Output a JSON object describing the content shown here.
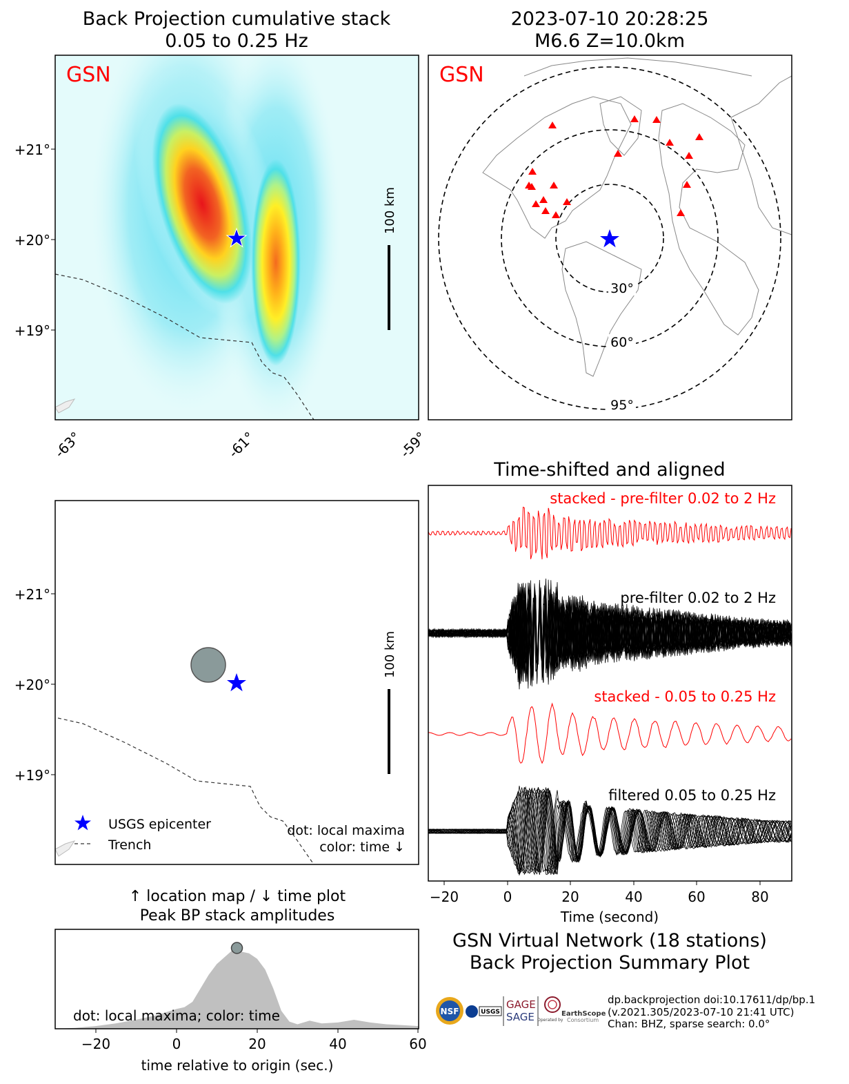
{
  "panels": {
    "bp_map": {
      "title": "Back Projection cumulative stack",
      "subtitle": "0.05 to 0.25 Hz",
      "network_label": "GSN",
      "scale_label": "100 km",
      "lat_ticks": [
        "+21°",
        "+20°",
        "+19°"
      ],
      "lon_ticks": [
        "-63°",
        "-61°",
        "-59°"
      ]
    },
    "station_map": {
      "title": "2023-07-10 20:28:25",
      "subtitle": "M6.6 Z=10.0km",
      "network_label": "GSN",
      "distance_rings": [
        "30°",
        "60°",
        "95°"
      ]
    },
    "location_map": {
      "scale_label": "100 km",
      "lat_ticks": [
        "+21°",
        "+20°",
        "+19°"
      ],
      "legend": {
        "epicenter": "USGS epicenter",
        "trench": "Trench"
      },
      "note_line1": "dot: local maxima",
      "note_line2": "color: time ↓"
    },
    "time_plot": {
      "title_line1": "↑ location map / ↓ time plot",
      "title_line2": "Peak BP stack amplitudes",
      "xlabel": "time relative to origin (sec.)",
      "note": "dot: local maxima; color: time",
      "x_ticks": [
        "−20",
        "0",
        "20",
        "40",
        "60"
      ]
    },
    "traces": {
      "title": "Time-shifted and aligned",
      "xlabel": "Time (second)",
      "x_ticks": [
        "−20",
        "0",
        "20",
        "40",
        "60",
        "80"
      ],
      "labels": [
        "stacked - pre-filter 0.02 to 2 Hz",
        "pre-filter 0.02 to 2 Hz",
        "stacked - 0.05 to 0.25 Hz",
        "filtered 0.05 to 0.25 Hz"
      ]
    },
    "summary": {
      "title_line1": "GSN Virtual Network (18 stations)",
      "title_line2": "Back Projection Summary Plot",
      "meta_line1": "dp.backprojection doi:10.17611/dp/bp.1",
      "meta_line2": "(v.2021.305/2023-07-10 21:41 UTC)",
      "meta_line3": "Chan: BHZ, sparse search: 0.0°",
      "logos": {
        "nsf": "NSF",
        "usgs": "USGS",
        "gage": "GAGE",
        "sage": "SAGE",
        "earthscope": "EarthScope",
        "consortium": "Consortium",
        "operated_by": "Operated by"
      }
    }
  },
  "colors": {
    "label_red": "#ff0000",
    "star_blue": "#0000ff",
    "triangle_red": "#ff0000",
    "fill_gray": "#c0c0c0"
  },
  "chart_data": [
    {
      "type": "heatmap",
      "title": "Back Projection cumulative stack",
      "subtitle": "0.05 to 0.25 Hz",
      "xlim": [
        -63.2,
        -59.0
      ],
      "ylim": [
        18.0,
        22.0
      ],
      "epicenter": {
        "lon": -61.1,
        "lat": 20.0
      },
      "maxima": [
        {
          "lon": -61.6,
          "lat": 20.4
        },
        {
          "lon": -60.5,
          "lat": 19.7
        }
      ],
      "trench": [
        [
          -63.2,
          19.6
        ],
        [
          -62.8,
          19.5
        ],
        [
          -62.1,
          19.1
        ],
        [
          -61.6,
          18.9
        ],
        [
          -61.1,
          18.85
        ],
        [
          -60.9,
          18.5
        ],
        [
          -60.65,
          18.4
        ],
        [
          -60.4,
          18.0
        ]
      ]
    },
    {
      "type": "scatter",
      "title": "2023-07-10 20:28:25",
      "subtitle": "M6.6 Z=10.0km",
      "rings_deg": [
        30,
        60,
        95
      ],
      "stations": 18
    },
    {
      "type": "area",
      "xlabel": "time relative to origin (sec.)",
      "xlim": [
        -30,
        60
      ],
      "x": [
        -30,
        -25,
        -20,
        -15,
        -10,
        -5,
        0,
        2,
        4,
        6,
        8,
        10,
        12,
        14,
        15,
        16,
        18,
        20,
        22,
        24,
        26,
        28,
        30,
        33,
        36,
        40,
        44,
        48,
        52,
        56,
        60
      ],
      "values": [
        0.0,
        0.01,
        0.03,
        0.06,
        0.1,
        0.15,
        0.22,
        0.24,
        0.3,
        0.45,
        0.6,
        0.72,
        0.8,
        0.88,
        0.9,
        0.86,
        0.84,
        0.78,
        0.66,
        0.45,
        0.2,
        0.08,
        0.05,
        0.09,
        0.06,
        0.07,
        0.1,
        0.07,
        0.05,
        0.04,
        0.03
      ],
      "peak": {
        "x": 15,
        "y": 0.9
      }
    },
    {
      "type": "line",
      "title": "Time-shifted and aligned",
      "xlabel": "Time (second)",
      "xlim": [
        -25,
        90
      ],
      "series": [
        {
          "name": "stacked - pre-filter 0.02 to 2 Hz"
        },
        {
          "name": "pre-filter 0.02 to 2 Hz"
        },
        {
          "name": "stacked - 0.05 to 0.25 Hz"
        },
        {
          "name": "filtered 0.05 to 0.25 Hz"
        }
      ]
    }
  ]
}
